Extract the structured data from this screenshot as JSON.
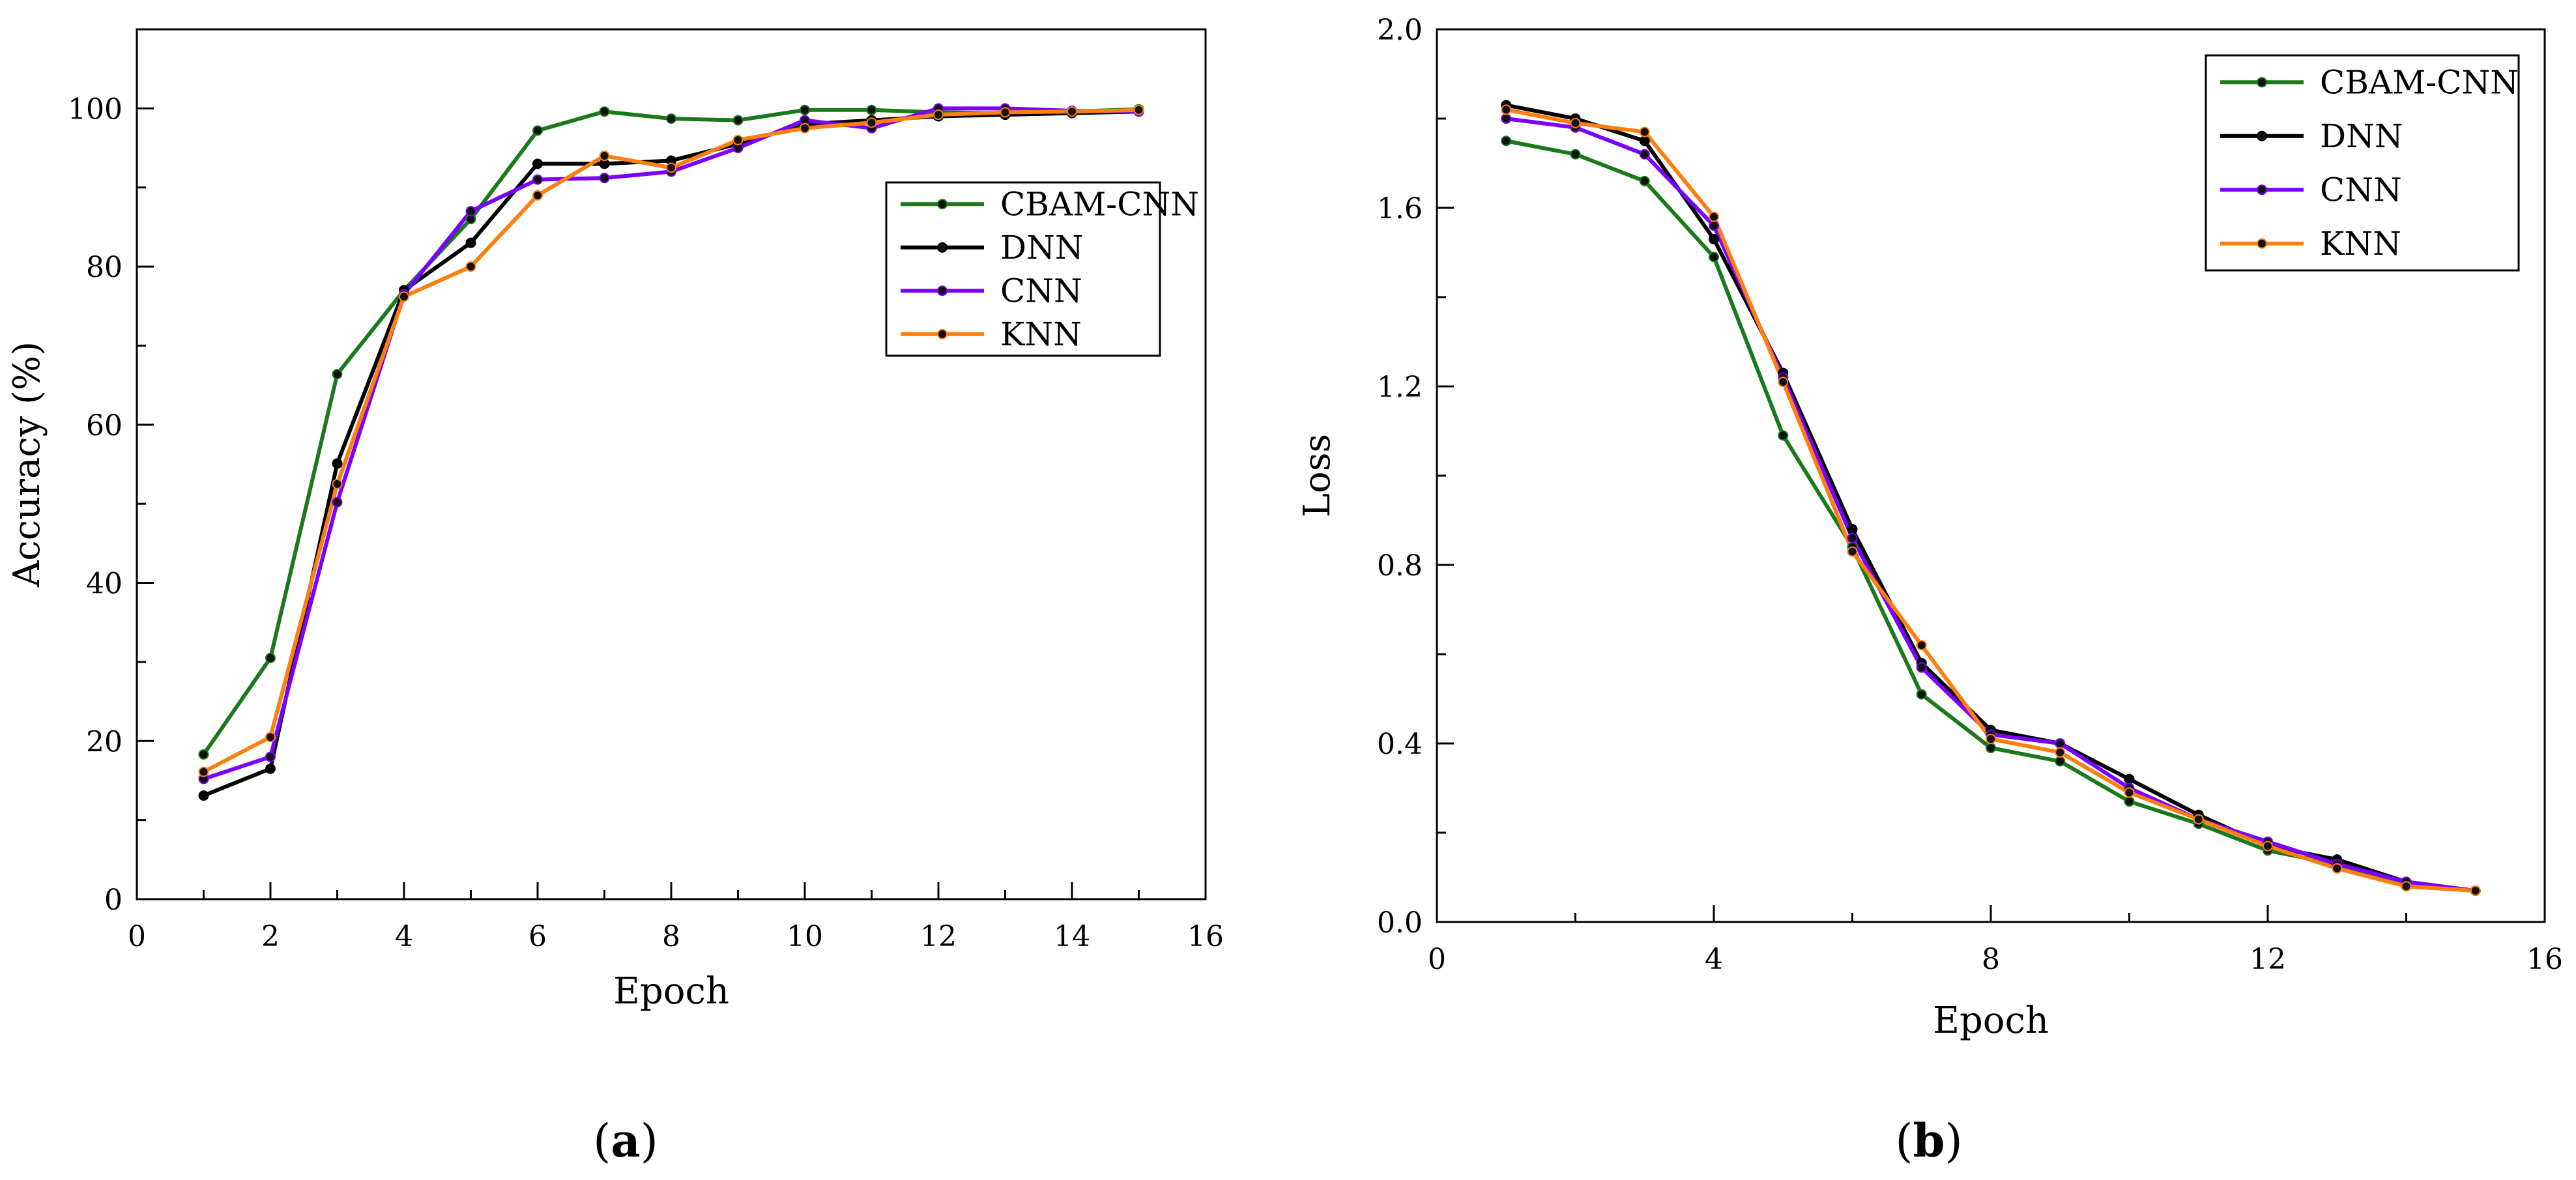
{
  "chart_data": [
    {
      "type": "line",
      "panel_label": "a",
      "xlabel": "Epoch",
      "ylabel": "Accuracy (%)",
      "xlim": [
        0,
        16
      ],
      "ylim": [
        0,
        110
      ],
      "xticks": [
        0,
        2,
        4,
        6,
        8,
        10,
        12,
        14,
        16
      ],
      "yticks": [
        0,
        20,
        40,
        60,
        80,
        100
      ],
      "legend_position": "right",
      "x": [
        1,
        2,
        3,
        4,
        5,
        6,
        7,
        8,
        9,
        10,
        11,
        12,
        13,
        14,
        15
      ],
      "series": [
        {
          "name": "CBAM-CNN",
          "color": "#1a7a1a",
          "values": [
            18.3,
            30.5,
            66.4,
            77,
            86,
            97.2,
            99.6,
            98.7,
            98.5,
            99.8,
            99.8,
            99.5,
            99.4,
            99.6,
            99.9
          ]
        },
        {
          "name": "DNN",
          "color": "#000000",
          "values": [
            13.1,
            16.5,
            55.1,
            77,
            83,
            93,
            93,
            93.4,
            95.5,
            98,
            98.5,
            99,
            99.2,
            99.4,
            99.6
          ]
        },
        {
          "name": "CNN",
          "color": "#7b00ff",
          "values": [
            15.2,
            18,
            50.2,
            76.5,
            87,
            91,
            91.2,
            92,
            95,
            98.5,
            97.5,
            100,
            100,
            99.7,
            99.6
          ]
        },
        {
          "name": "KNN",
          "color": "#ff7f0e",
          "values": [
            16.1,
            20.5,
            52.5,
            76.2,
            80,
            89,
            94,
            92.5,
            96,
            97.5,
            98.2,
            99.2,
            99.5,
            99.6,
            99.8
          ]
        }
      ]
    },
    {
      "type": "line",
      "panel_label": "b",
      "xlabel": "Epoch",
      "ylabel": "Loss",
      "xlim": [
        0,
        16
      ],
      "ylim": [
        0,
        2
      ],
      "xticks": [
        0,
        4,
        8,
        12,
        16
      ],
      "yticks": [
        0,
        0.4,
        0.8,
        1.2,
        1.6,
        2.0
      ],
      "ytick_labels": [
        "0.0",
        "0.4",
        "0.8",
        "1.2",
        "1.6",
        "2.0"
      ],
      "legend_position": "top-right",
      "x": [
        1,
        2,
        3,
        4,
        5,
        6,
        7,
        8,
        9,
        10,
        11,
        12,
        13,
        14,
        15
      ],
      "series": [
        {
          "name": "CBAM-CNN",
          "color": "#1a7a1a",
          "values": [
            1.75,
            1.72,
            1.66,
            1.49,
            1.09,
            0.84,
            0.51,
            0.39,
            0.36,
            0.27,
            0.22,
            0.16,
            0.13,
            0.08,
            0.07
          ]
        },
        {
          "name": "DNN",
          "color": "#000000",
          "values": [
            1.83,
            1.8,
            1.75,
            1.53,
            1.23,
            0.88,
            0.58,
            0.43,
            0.4,
            0.32,
            0.24,
            0.17,
            0.14,
            0.09,
            0.07
          ]
        },
        {
          "name": "CNN",
          "color": "#7b00ff",
          "values": [
            1.8,
            1.78,
            1.72,
            1.56,
            1.22,
            0.86,
            0.57,
            0.42,
            0.4,
            0.3,
            0.23,
            0.18,
            0.13,
            0.09,
            0.07
          ]
        },
        {
          "name": "KNN",
          "color": "#ff7f0e",
          "values": [
            1.82,
            1.79,
            1.77,
            1.58,
            1.21,
            0.83,
            0.62,
            0.41,
            0.38,
            0.29,
            0.23,
            0.17,
            0.12,
            0.08,
            0.07
          ]
        }
      ]
    }
  ]
}
